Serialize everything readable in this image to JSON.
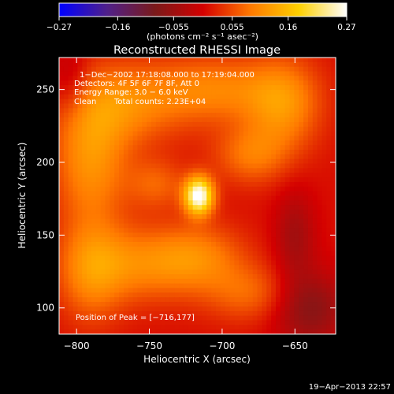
{
  "chart_data": {
    "type": "heatmap",
    "title": "Reconstructed RHESSI Image",
    "xlabel": "Heliocentric X (arcsec)",
    "ylabel": "Heliocentric Y (arcsec)",
    "xlim": [
      -812,
      -622
    ],
    "ylim": [
      82,
      272
    ],
    "x_ticks": [
      -800,
      -750,
      -700,
      -650
    ],
    "x_tick_labels": [
      "−800",
      "−750",
      "−700",
      "−650"
    ],
    "y_ticks": [
      100,
      150,
      200,
      250
    ],
    "y_tick_labels": [
      "100",
      "150",
      "200",
      "250"
    ],
    "colorbar": {
      "range": [
        -0.27,
        0.27
      ],
      "ticks": [
        -0.27,
        -0.16,
        -0.055,
        0.055,
        0.16,
        0.27
      ],
      "tick_labels": [
        "−0.27",
        "−0.16",
        "−0.055",
        "0.055",
        "0.16",
        "0.27"
      ],
      "label": "(photons cm⁻² s⁻¹ asec⁻²)",
      "colors": [
        "#0000ff",
        "#50208a",
        "#7a1a1a",
        "#d40000",
        "#ff7a00",
        "#ffd000",
        "#ffffff"
      ]
    },
    "annotations": {
      "line1": "1−Dec−2002 17:18:08.000 to 17:19:04.000",
      "line2": "Detectors: 4F 5F 6F 7F 8F, Att 0",
      "line3": "Energy Range: 3.0 − 6.0 keV",
      "line4_a": "Clean",
      "line4_b": "Total counts: 2.23E+04",
      "peak": "Position of Peak = [−716,177]"
    },
    "peak": {
      "x": -716,
      "y": 177
    },
    "sources": [
      {
        "x": -716,
        "y": 177,
        "sx": 7,
        "sy": 9,
        "amp": 0.27
      },
      {
        "x": -770,
        "y": 240,
        "sx": 30,
        "sy": 20,
        "amp": 0.09
      },
      {
        "x": -790,
        "y": 200,
        "sx": 18,
        "sy": 30,
        "amp": 0.1
      },
      {
        "x": -705,
        "y": 250,
        "sx": 30,
        "sy": 16,
        "amp": 0.085
      },
      {
        "x": -658,
        "y": 240,
        "sx": 18,
        "sy": 22,
        "amp": 0.1
      },
      {
        "x": -680,
        "y": 205,
        "sx": 18,
        "sy": 14,
        "amp": 0.075
      },
      {
        "x": -755,
        "y": 130,
        "sx": 30,
        "sy": 18,
        "amp": 0.085
      },
      {
        "x": -790,
        "y": 125,
        "sx": 16,
        "sy": 25,
        "amp": 0.08
      },
      {
        "x": -715,
        "y": 135,
        "sx": 22,
        "sy": 16,
        "amp": 0.07
      },
      {
        "x": -680,
        "y": 110,
        "sx": 22,
        "sy": 14,
        "amp": 0.065
      },
      {
        "x": -745,
        "y": 185,
        "sx": 14,
        "sy": 12,
        "amp": 0.06
      },
      {
        "x": -650,
        "y": 150,
        "sx": 10,
        "sy": 22,
        "amp": -0.06
      },
      {
        "x": -640,
        "y": 100,
        "sx": 18,
        "sy": 18,
        "amp": -0.09
      },
      {
        "x": -805,
        "y": 255,
        "sx": 10,
        "sy": 18,
        "amp": -0.05
      }
    ],
    "baseline": 0.01
  },
  "footer": {
    "timestamp": "19−Apr−2013 22:57"
  }
}
